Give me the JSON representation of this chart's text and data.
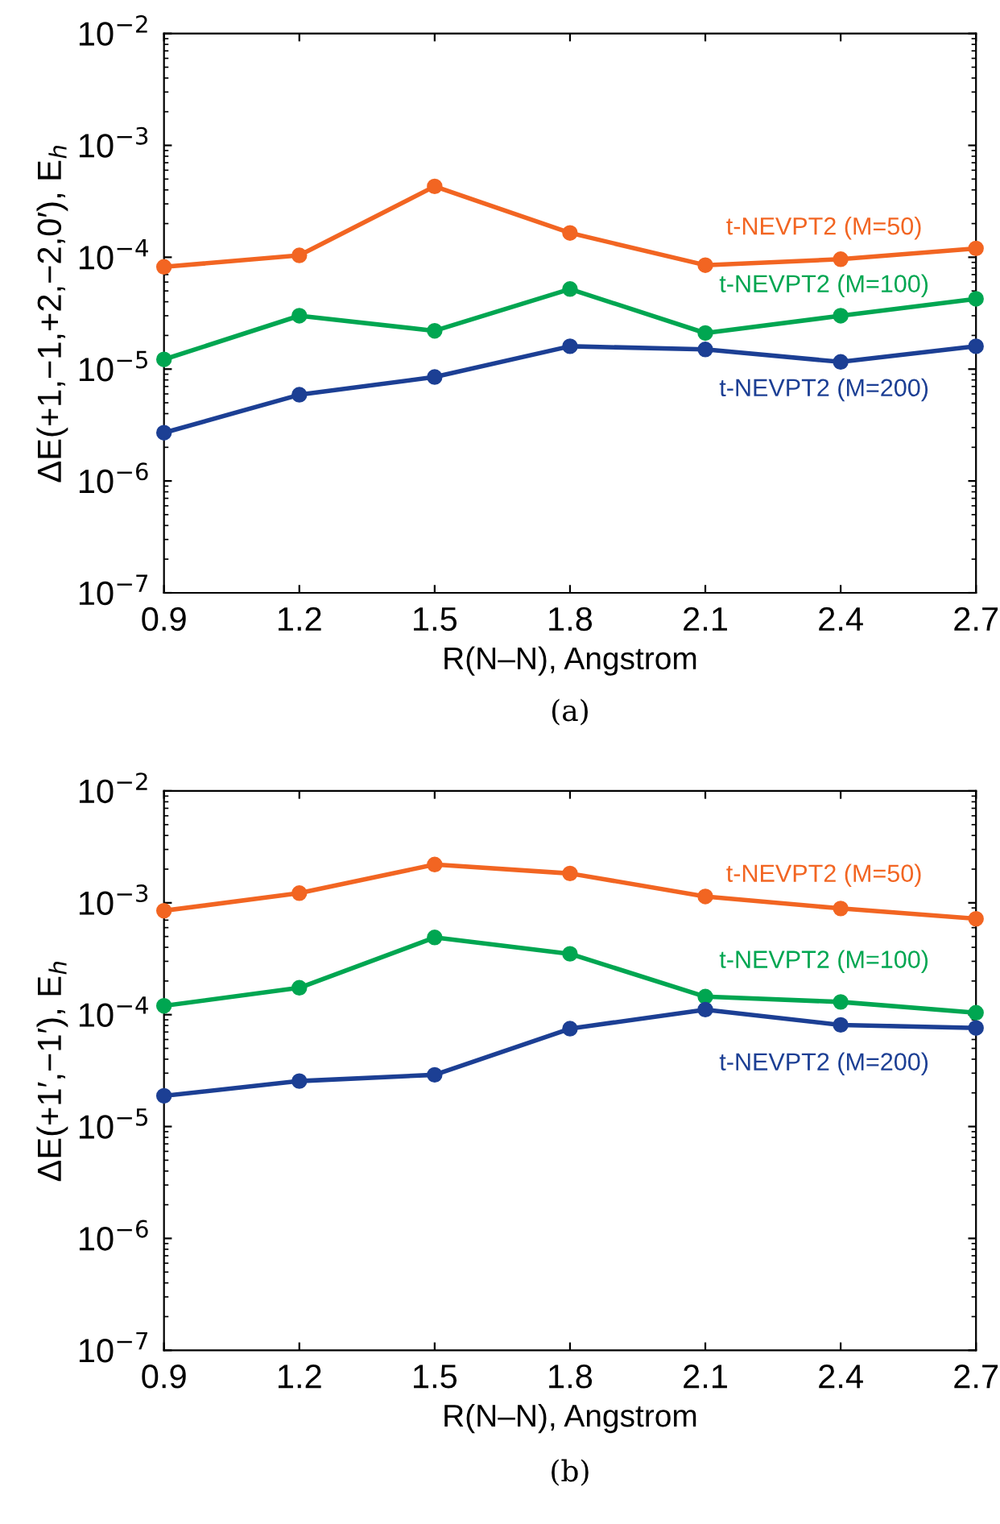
{
  "chart_data": [
    {
      "type": "line",
      "xlabel": "R(N–N), Angstrom",
      "ylabel": "ΔE(+1,−1,+2,−2,0′), E$_{h}$",
      "log": "y",
      "marker": "circle",
      "line_style": "solid",
      "legend": false,
      "grid": false,
      "x": [
        0.9,
        1.2,
        1.5,
        1.8,
        2.1,
        2.4,
        2.7
      ],
      "xlim": [
        0.9,
        2.7
      ],
      "xticks": [
        0.9,
        1.2,
        1.5,
        1.8,
        2.1,
        2.4,
        2.7
      ],
      "ylim": [
        1e-07,
        0.01
      ],
      "yticks": [
        {
          "value": 1e-07,
          "label": "10$^{−7}$"
        },
        {
          "value": 1e-06,
          "label": "10$^{−6}$"
        },
        {
          "value": 1e-05,
          "label": "10$^{−5}$"
        },
        {
          "value": 0.0001,
          "label": "10$^{−4}$"
        },
        {
          "value": 0.001,
          "label": "10$^{−3}$"
        },
        {
          "value": 0.01,
          "label": "10$^{−2}$"
        }
      ],
      "annotations": [
        "(a)"
      ],
      "series": [
        {
          "name": "t-NEVPT2 (M=50)",
          "color": "#f26522",
          "values": [
            8.2e-05,
            0.000104,
            0.00043,
            0.000165,
            8.5e-05,
            9.6e-05,
            0.00012
          ]
        },
        {
          "name": "t-NEVPT2 (M=100)",
          "color": "#00a651",
          "values": [
            1.22e-05,
            3e-05,
            2.2e-05,
            5.2e-05,
            2.1e-05,
            3e-05,
            4.25e-05
          ]
        },
        {
          "name": "t-NEVPT2 (M=200)",
          "color": "#1c3f94",
          "values": [
            2.7e-06,
            5.9e-06,
            8.5e-06,
            1.6e-05,
            1.5e-05,
            1.16e-05,
            1.6e-05
          ]
        }
      ]
    },
    {
      "type": "line",
      "xlabel": "R(N–N), Angstrom",
      "ylabel": "ΔE(+1′,−1′), E$_{h}$",
      "log": "y",
      "marker": "circle",
      "line_style": "solid",
      "legend": false,
      "grid": false,
      "x": [
        0.9,
        1.2,
        1.5,
        1.8,
        2.1,
        2.4,
        2.7
      ],
      "xlim": [
        0.9,
        2.7
      ],
      "xticks": [
        0.9,
        1.2,
        1.5,
        1.8,
        2.1,
        2.4,
        2.7
      ],
      "ylim": [
        1e-07,
        0.01
      ],
      "yticks": [
        {
          "value": 1e-07,
          "label": "10$^{−7}$"
        },
        {
          "value": 1e-06,
          "label": "10$^{−6}$"
        },
        {
          "value": 1e-05,
          "label": "10$^{−5}$"
        },
        {
          "value": 0.0001,
          "label": "10$^{−4}$"
        },
        {
          "value": 0.001,
          "label": "10$^{−3}$"
        },
        {
          "value": 0.01,
          "label": "10$^{−2}$"
        }
      ],
      "annotations": [
        "(b)"
      ],
      "series": [
        {
          "name": "t-NEVPT2 (M=50)",
          "color": "#f26522",
          "values": [
            0.00085,
            0.00122,
            0.0022,
            0.00183,
            0.00114,
            0.00089,
            0.00072
          ]
        },
        {
          "name": "t-NEVPT2 (M=100)",
          "color": "#00a651",
          "values": [
            0.00012,
            0.000174,
            0.00049,
            0.00035,
            0.000145,
            0.00013,
            0.000104
          ]
        },
        {
          "name": "t-NEVPT2 (M=200)",
          "color": "#1c3f94",
          "values": [
            1.88e-05,
            2.55e-05,
            2.9e-05,
            7.5e-05,
            0.000111,
            8.1e-05,
            7.6e-05
          ]
        }
      ]
    }
  ]
}
